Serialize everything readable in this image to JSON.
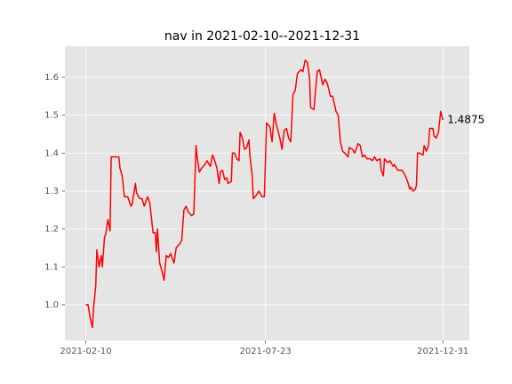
{
  "chart_data": {
    "type": "line",
    "title": "nav in 2021-02-10--2021-12-31",
    "color": "red",
    "grid": true,
    "x": [
      "2021-02-10",
      "2021-02-12",
      "2021-02-14",
      "2021-02-16",
      "2021-02-17",
      "2021-02-19",
      "2021-02-20",
      "2021-02-22",
      "2021-02-24",
      "2021-02-25",
      "2021-02-27",
      "2021-02-28",
      "2021-03-02",
      "2021-03-04",
      "2021-03-05",
      "2021-03-09",
      "2021-03-12",
      "2021-03-13",
      "2021-03-15",
      "2021-03-17",
      "2021-03-20",
      "2021-03-23",
      "2021-03-24",
      "2021-03-27",
      "2021-03-28",
      "2021-03-31",
      "2021-04-02",
      "2021-04-04",
      "2021-04-07",
      "2021-04-09",
      "2021-04-12",
      "2021-04-14",
      "2021-04-15",
      "2021-04-16",
      "2021-04-18",
      "2021-04-20",
      "2021-04-22",
      "2021-04-24",
      "2021-04-26",
      "2021-04-28",
      "2021-05-01",
      "2021-05-03",
      "2021-05-06",
      "2021-05-08",
      "2021-05-10",
      "2021-05-12",
      "2021-05-14",
      "2021-05-17",
      "2021-05-19",
      "2021-05-21",
      "2021-05-22",
      "2021-05-24",
      "2021-05-26",
      "2021-05-29",
      "2021-05-31",
      "2021-06-03",
      "2021-06-05",
      "2021-06-07",
      "2021-06-09",
      "2021-06-11",
      "2021-06-12",
      "2021-06-14",
      "2021-06-16",
      "2021-06-18",
      "2021-06-19",
      "2021-06-22",
      "2021-06-23",
      "2021-06-25",
      "2021-06-27",
      "2021-06-29",
      "2021-06-30",
      "2021-07-02",
      "2021-07-04",
      "2021-07-06",
      "2021-07-08",
      "2021-07-09",
      "2021-07-11",
      "2021-07-12",
      "2021-07-15",
      "2021-07-17",
      "2021-07-20",
      "2021-07-22",
      "2021-07-24",
      "2021-07-27",
      "2021-07-29",
      "2021-07-31",
      "2021-08-02",
      "2021-08-05",
      "2021-08-07",
      "2021-08-09",
      "2021-08-11",
      "2021-08-13",
      "2021-08-15",
      "2021-08-17",
      "2021-08-19",
      "2021-08-21",
      "2021-08-24",
      "2021-08-26",
      "2021-08-28",
      "2021-08-30",
      "2021-09-01",
      "2021-09-02",
      "2021-09-05",
      "2021-09-06",
      "2021-09-08",
      "2021-09-10",
      "2021-09-13",
      "2021-09-15",
      "2021-09-17",
      "2021-09-20",
      "2021-09-22",
      "2021-09-25",
      "2021-09-27",
      "2021-09-29",
      "2021-10-01",
      "2021-10-03",
      "2021-10-06",
      "2021-10-07",
      "2021-10-10",
      "2021-10-12",
      "2021-10-15",
      "2021-10-17",
      "2021-10-19",
      "2021-10-21",
      "2021-10-23",
      "2021-10-26",
      "2021-10-28",
      "2021-10-30",
      "2021-11-01",
      "2021-11-04",
      "2021-11-05",
      "2021-11-07",
      "2021-11-08",
      "2021-11-11",
      "2021-11-13",
      "2021-11-16",
      "2021-11-17",
      "2021-11-20",
      "2021-11-24",
      "2021-11-27",
      "2021-11-29",
      "2021-12-01",
      "2021-12-02",
      "2021-12-04",
      "2021-12-06",
      "2021-12-07",
      "2021-12-08",
      "2021-12-10",
      "2021-12-13",
      "2021-12-14",
      "2021-12-16",
      "2021-12-18",
      "2021-12-19",
      "2021-12-22",
      "2021-12-23",
      "2021-12-25",
      "2021-12-27",
      "2021-12-29",
      "2021-12-31"
    ],
    "values": [
      1.0,
      1.0,
      0.965,
      0.94,
      0.99,
      1.05,
      1.145,
      1.1,
      1.13,
      1.1,
      1.18,
      1.185,
      1.225,
      1.195,
      1.39,
      1.39,
      1.39,
      1.36,
      1.34,
      1.285,
      1.285,
      1.26,
      1.265,
      1.32,
      1.295,
      1.28,
      1.28,
      1.26,
      1.285,
      1.27,
      1.19,
      1.19,
      1.14,
      1.2,
      1.11,
      1.09,
      1.065,
      1.13,
      1.125,
      1.135,
      1.11,
      1.15,
      1.16,
      1.17,
      1.25,
      1.26,
      1.245,
      1.235,
      1.24,
      1.42,
      1.39,
      1.35,
      1.36,
      1.37,
      1.38,
      1.365,
      1.395,
      1.38,
      1.36,
      1.32,
      1.35,
      1.355,
      1.33,
      1.335,
      1.32,
      1.325,
      1.4,
      1.4,
      1.385,
      1.38,
      1.455,
      1.44,
      1.41,
      1.415,
      1.435,
      1.39,
      1.34,
      1.28,
      1.29,
      1.3,
      1.285,
      1.285,
      1.48,
      1.47,
      1.43,
      1.505,
      1.475,
      1.44,
      1.41,
      1.46,
      1.465,
      1.44,
      1.43,
      1.555,
      1.565,
      1.61,
      1.62,
      1.615,
      1.645,
      1.64,
      1.6,
      1.52,
      1.515,
      1.55,
      1.615,
      1.62,
      1.58,
      1.595,
      1.585,
      1.55,
      1.55,
      1.51,
      1.5,
      1.43,
      1.405,
      1.4,
      1.39,
      1.415,
      1.41,
      1.4,
      1.425,
      1.42,
      1.39,
      1.395,
      1.385,
      1.385,
      1.38,
      1.39,
      1.38,
      1.385,
      1.355,
      1.34,
      1.385,
      1.375,
      1.38,
      1.365,
      1.37,
      1.355,
      1.355,
      1.34,
      1.325,
      1.305,
      1.31,
      1.3,
      1.305,
      1.315,
      1.4,
      1.4,
      1.395,
      1.42,
      1.405,
      1.42,
      1.465,
      1.465,
      1.445,
      1.44,
      1.455,
      1.51,
      1.4875
    ],
    "xlim": [
      "2021-01-22",
      "2022-01-24"
    ],
    "xticks": [
      "2021-02-10",
      "2021-07-23",
      "2021-12-31"
    ],
    "ylim": [
      0.906,
      1.682
    ],
    "yticks": [
      {
        "value": 1.0,
        "label": "1.0"
      },
      1.1,
      1.2,
      1.3,
      1.4,
      1.5,
      1.6
    ]
  }
}
